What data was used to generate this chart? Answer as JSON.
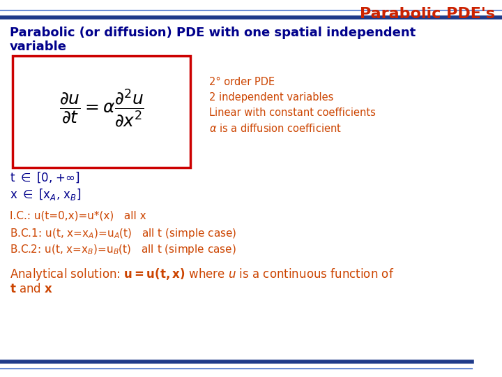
{
  "title": "Parabolic PDE's",
  "title_color": "#CC2200",
  "title_fontsize": 16,
  "bg_color": "#FFFFFF",
  "header_line_color1": "#1E3A8A",
  "header_line_color2": "#6B8DD6",
  "footer_line_color1": "#1E3A8A",
  "footer_line_color2": "#6B8DD6",
  "main_heading_line1": "Parabolic (or diffusion) PDE with one spatial independent",
  "main_heading_line2": "variable",
  "main_heading_color": "#00008B",
  "main_heading_fontsize": 13,
  "equation_box_color": "#CC0000",
  "side_text_color": "#CC4400",
  "side_fontsize": 10.5,
  "side_lines": [
    "2° order PDE",
    "2 independent variables",
    "Linear with constant coefficients"
  ],
  "side_alpha_line": "α is a diffusion coefficient",
  "membership_color": "#00008B",
  "membership_fontsize": 12,
  "ic_bc_color": "#CC4400",
  "ic_bc_fontsize": 11,
  "analytical_color": "#CC4400",
  "analytical_fontsize": 12
}
